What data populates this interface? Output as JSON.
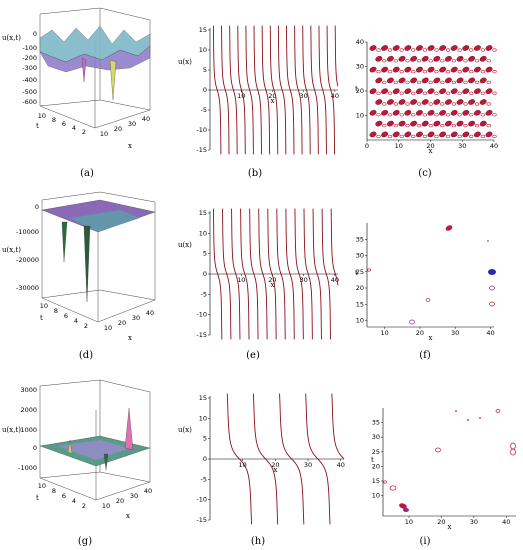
{
  "figure": {
    "captions": [
      "(a)",
      "(b)",
      "(c)",
      "(d)",
      "(e)",
      "(f)",
      "(g)",
      "(h)",
      "(i)"
    ]
  },
  "colors": {
    "curve": "#8b0f1a",
    "contour_red": "#c0183a",
    "contour_purple": "#8b2a8b",
    "contour_blue": "#2a2ab0"
  },
  "chart_data": [
    {
      "id": "a",
      "type": "surface3d",
      "zlabel": "u(x,t)",
      "xlabel": "x",
      "ylabel": "t",
      "zticks": [
        "0",
        "-100",
        "-200",
        "-300",
        "-400",
        "-500",
        "-600"
      ],
      "xticks": [
        "10",
        "20",
        "30",
        "40"
      ],
      "yticks": [
        "10",
        "8",
        "6",
        "4",
        "2"
      ],
      "zlim": [
        -650,
        50
      ]
    },
    {
      "id": "b",
      "type": "line",
      "ylabel": "u(x)",
      "xlabel": "x",
      "xticks": [
        "10",
        "20",
        "30",
        "40"
      ],
      "yticks": [
        "15",
        "10",
        "5",
        "0",
        "-5",
        "-10",
        "-15"
      ],
      "xlim": [
        0,
        41
      ],
      "ylim": [
        -15,
        15
      ],
      "asymptotes_x": [
        1.0,
        3.6,
        6.2,
        8.8,
        11.4,
        14.0,
        16.6,
        19.2,
        21.8,
        24.4,
        27.0,
        29.6,
        32.2,
        34.8,
        37.4,
        40.0
      ]
    },
    {
      "id": "c",
      "type": "contour",
      "ylabel": "t",
      "xlabel": "x",
      "xticks": [
        "0",
        "10",
        "20",
        "30",
        "40"
      ],
      "yticks": [
        "10",
        "20",
        "30",
        "40"
      ],
      "xlim": [
        0,
        40
      ],
      "ylim": [
        0,
        40
      ]
    },
    {
      "id": "d",
      "type": "surface3d",
      "zlabel": "u(x,t)",
      "xlabel": "x",
      "ylabel": "t",
      "zticks": [
        "0",
        "-10000",
        "-20000",
        "-30000"
      ],
      "xticks": [
        "10",
        "20",
        "30",
        "40"
      ],
      "yticks": [
        "10",
        "8",
        "6",
        "4",
        "2"
      ],
      "zlim": [
        -35000,
        2000
      ]
    },
    {
      "id": "e",
      "type": "line",
      "ylabel": "u(x)",
      "xlabel": "x",
      "xticks": [
        "10",
        "20",
        "30",
        "40"
      ],
      "yticks": [
        "15",
        "10",
        "5",
        "0",
        "-5",
        "-10",
        "-15"
      ],
      "xlim": [
        0,
        41
      ],
      "ylim": [
        -15,
        15
      ],
      "asymptotes_x": [
        1.0,
        3.9,
        6.8,
        9.7,
        12.6,
        15.5,
        18.4,
        21.3,
        24.2,
        27.1,
        30.0,
        32.9,
        35.8,
        38.7
      ]
    },
    {
      "id": "f",
      "type": "contour",
      "ylabel": "t",
      "xlabel": "x",
      "xticks": [
        "10",
        "20",
        "30",
        "40"
      ],
      "yticks": [
        "10",
        "15",
        "20",
        "25",
        "30",
        "35"
      ],
      "xlim": [
        5,
        41
      ],
      "ylim": [
        8,
        40
      ]
    },
    {
      "id": "g",
      "type": "surface3d",
      "zlabel": "u(x,t)",
      "xlabel": "x",
      "ylabel": "t",
      "zticks": [
        "3000",
        "2000",
        "1000",
        "0",
        "-1000"
      ],
      "xticks": [
        "10",
        "20",
        "30",
        "40"
      ],
      "yticks": [
        "10",
        "8",
        "6",
        "4",
        "2"
      ],
      "zlim": [
        -1500,
        3500
      ]
    },
    {
      "id": "h",
      "type": "line",
      "ylabel": "u(x)",
      "xlabel": "x",
      "xticks": [
        "10",
        "20",
        "30",
        "40"
      ],
      "yticks": [
        "15",
        "10",
        "5",
        "0",
        "-5",
        "-10",
        "-15"
      ],
      "xlim": [
        0,
        41
      ],
      "ylim": [
        -15,
        15
      ],
      "asymptotes_x": [
        5.0,
        13.0,
        21.0,
        29.0,
        37.0
      ]
    },
    {
      "id": "i",
      "type": "contour",
      "ylabel": "t",
      "xlabel": "x",
      "xticks": [
        "10",
        "20",
        "30",
        "40"
      ],
      "yticks": [
        "10",
        "15",
        "20",
        "25",
        "30",
        "35"
      ],
      "xlim": [
        2,
        43
      ],
      "ylim": [
        3,
        40
      ]
    }
  ]
}
